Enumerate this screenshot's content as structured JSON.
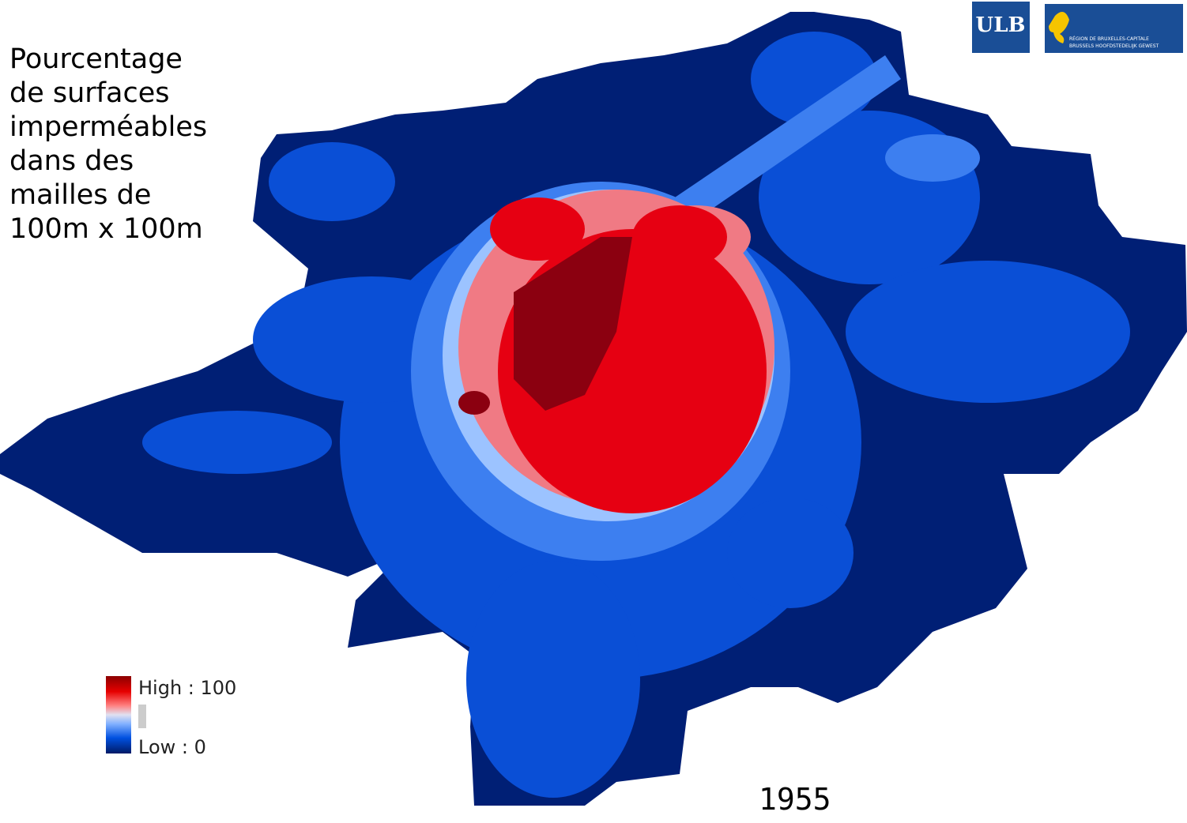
{
  "title_lines": [
    "Pourcentage",
    "de surfaces",
    "imperméables",
    "dans des",
    "mailles de",
    "100m x 100m"
  ],
  "legend": {
    "high": "High : 100",
    "low": "Low : 0"
  },
  "year": "1955",
  "logos": {
    "ulb": "ULB",
    "region_fr": "RÉGION DE BRUXELLES-CAPITALE",
    "region_nl": "BRUSSELS HOOFDSTEDELIJK GEWEST"
  }
}
